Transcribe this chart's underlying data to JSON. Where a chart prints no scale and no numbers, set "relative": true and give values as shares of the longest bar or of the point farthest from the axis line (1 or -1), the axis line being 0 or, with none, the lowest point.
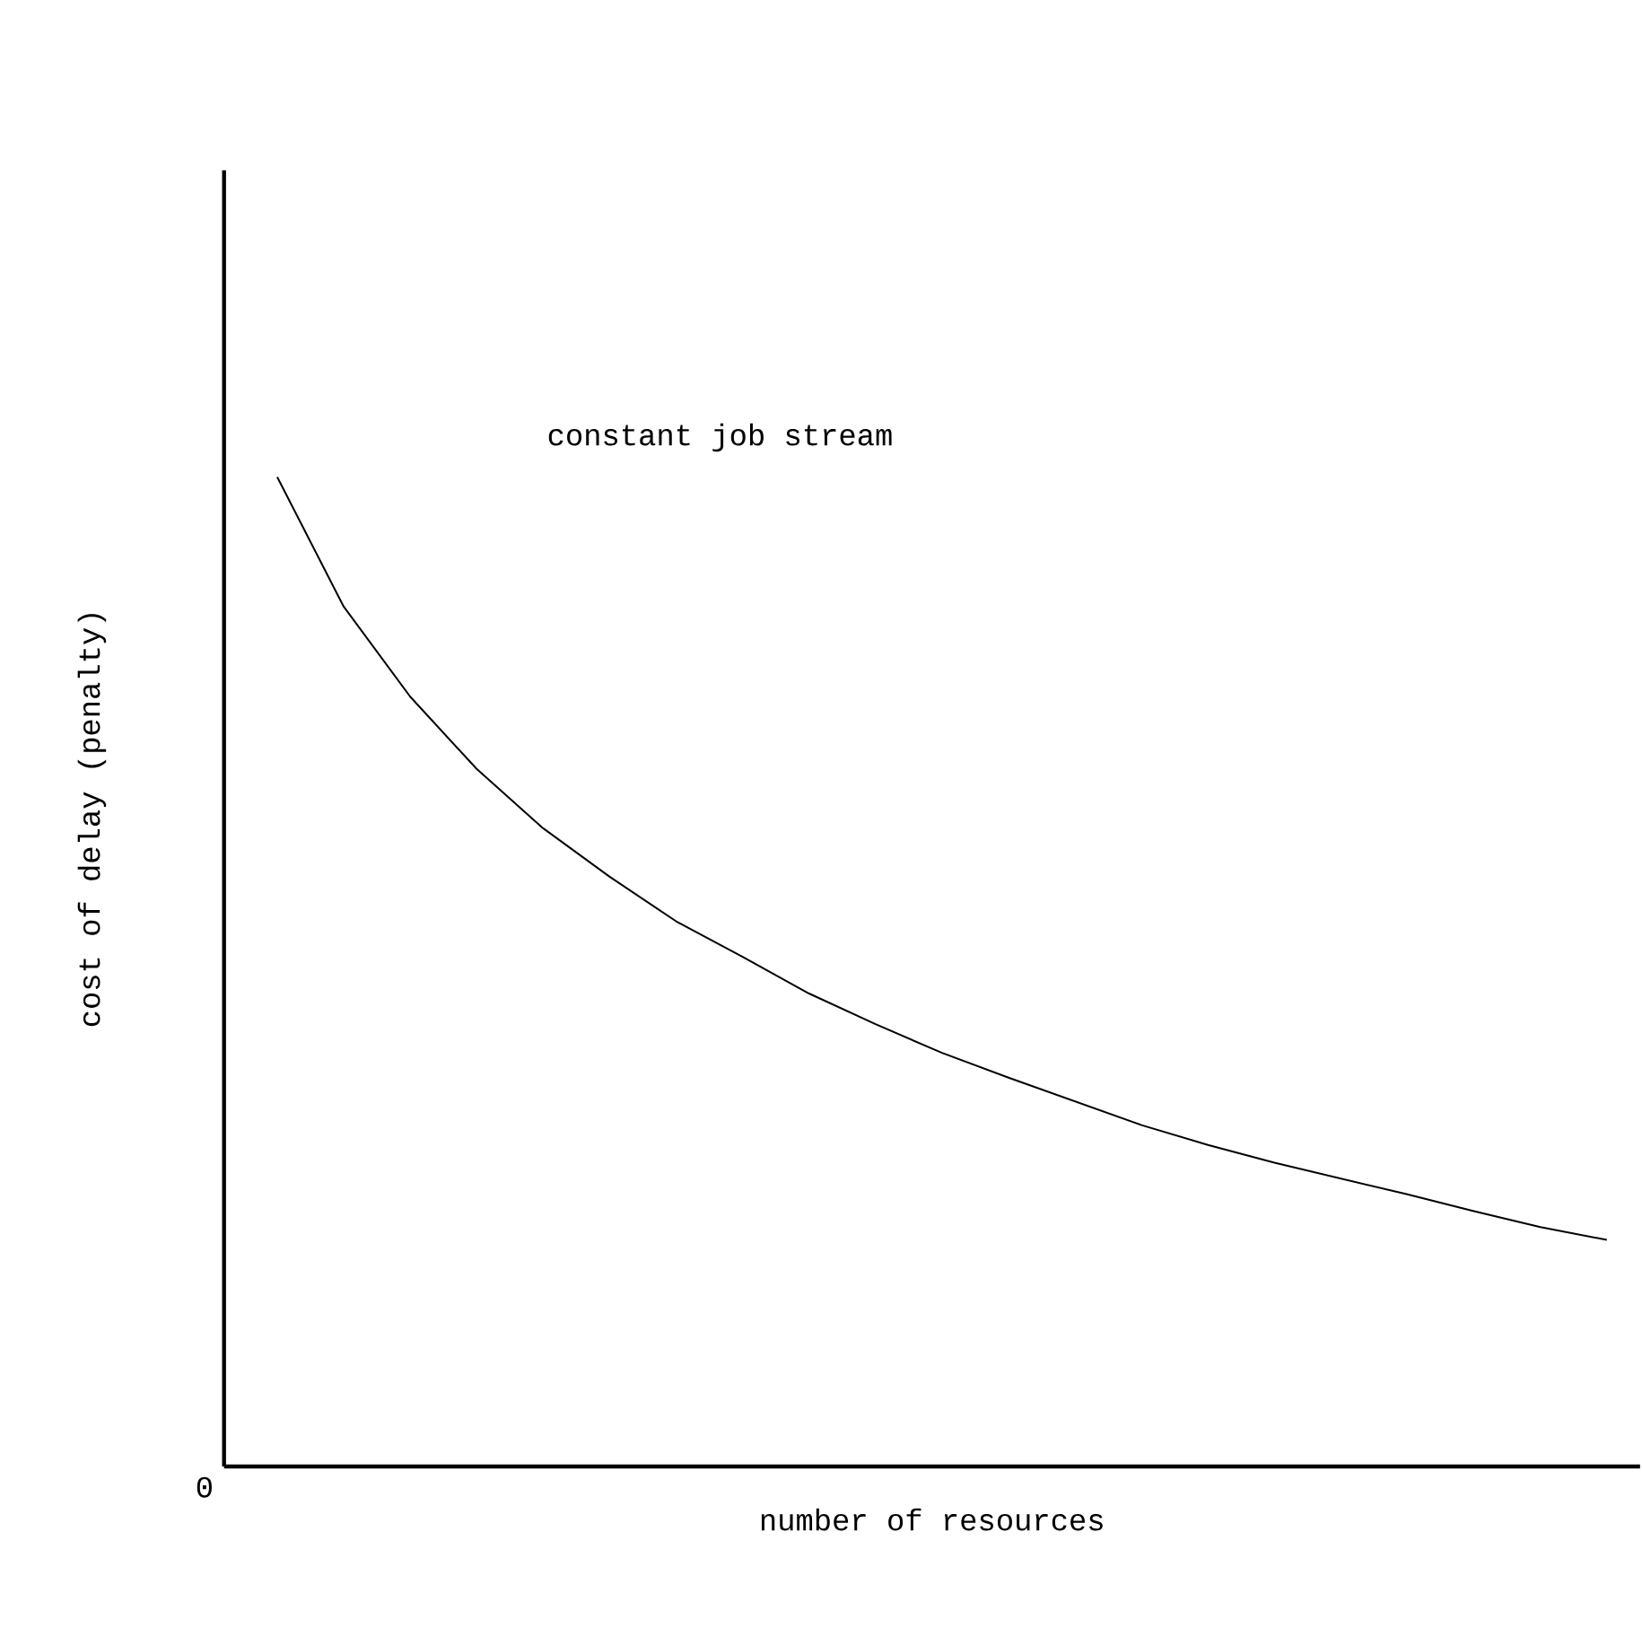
{
  "chart_data": {
    "type": "line",
    "relative": true,
    "xlabel": "number of resources",
    "ylabel": "cost of delay (penalty)",
    "annotations": [
      "constant job stream",
      "0"
    ],
    "categories": [
      null,
      null,
      null,
      null,
      null,
      null,
      null,
      null,
      null,
      null,
      null,
      null,
      null,
      null,
      null,
      null,
      null,
      null,
      null,
      null,
      null
    ],
    "color": "#000000",
    "values": [
      1,
      0.869,
      0.778,
      0.705,
      0.645,
      0.596,
      0.551,
      0.515,
      0.478,
      0.447,
      0.418,
      0.393,
      0.369,
      0.345,
      0.325,
      0.307,
      0.291,
      0.275,
      0.258,
      0.242,
      0.229
    ]
  }
}
